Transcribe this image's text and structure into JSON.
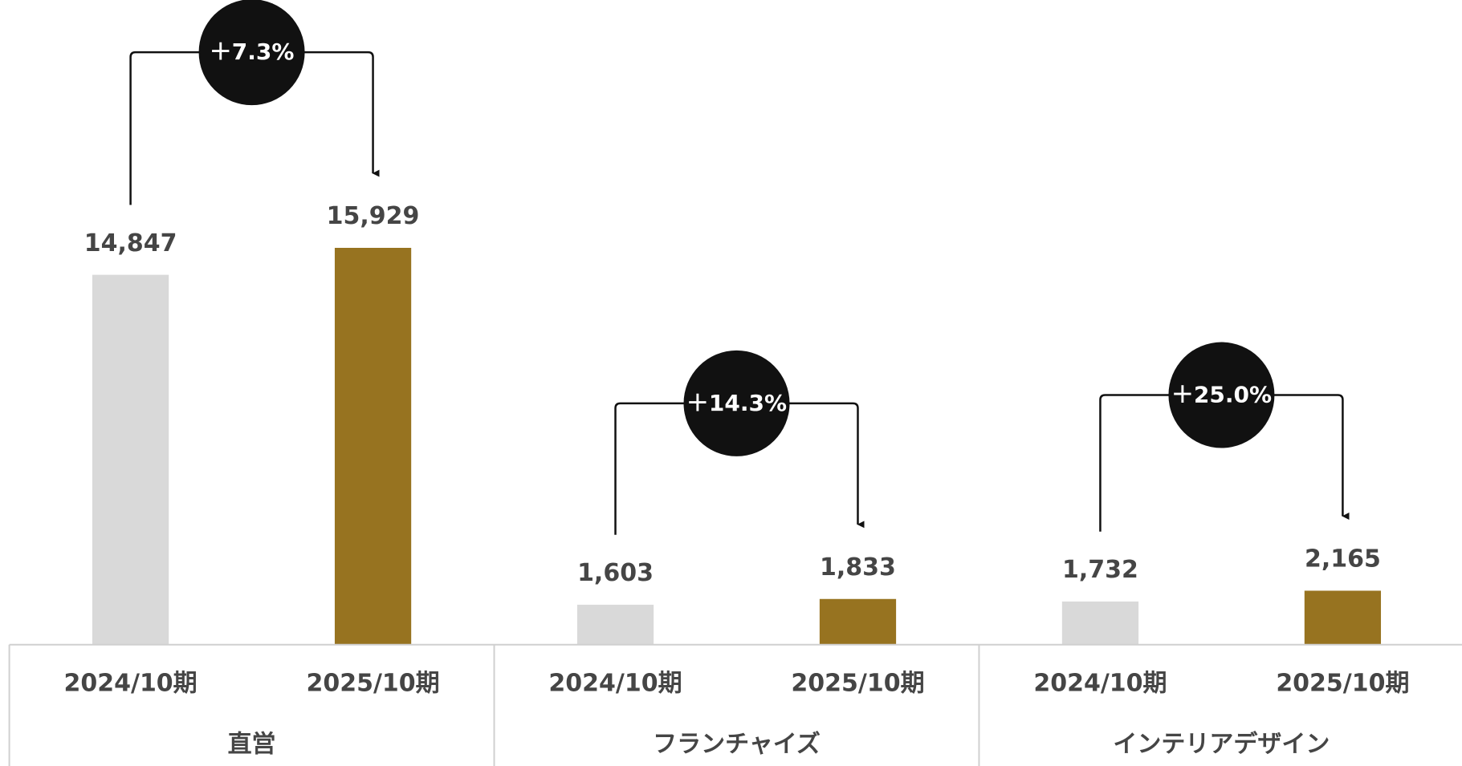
{
  "chart_data": {
    "type": "bar",
    "categories": [
      "直営",
      "フランチャイズ",
      "インテリアデザイン"
    ],
    "series": [
      {
        "name": "2024/10期",
        "color": "#d9d9d9",
        "values": [
          14847,
          1603,
          1732
        ],
        "value_labels": [
          "14,847",
          "1,603",
          "1,732"
        ]
      },
      {
        "name": "2025/10期",
        "color": "#977320",
        "values": [
          15929,
          1833,
          2165
        ],
        "value_labels": [
          "15,929",
          "1,833",
          "2,165"
        ]
      }
    ],
    "annotations": [
      "＋7.3%",
      "＋14.3%",
      "＋25.0%"
    ],
    "ylim": [
      0,
      20000
    ]
  }
}
